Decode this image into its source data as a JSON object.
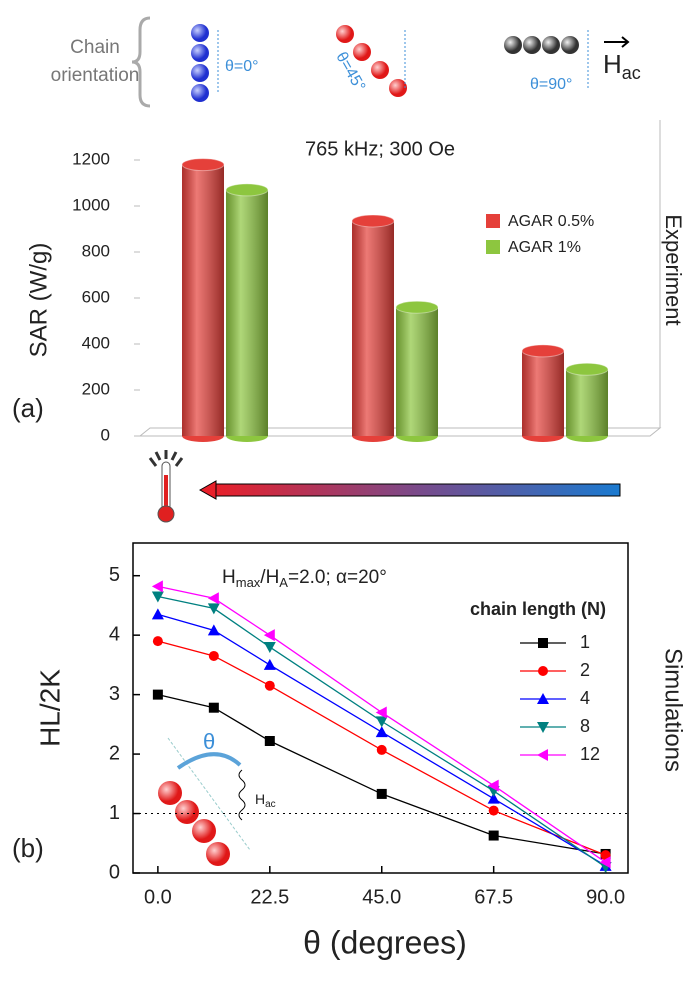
{
  "header": {
    "chain_label": [
      "Chain",
      "orientation"
    ],
    "angles": [
      "θ=0°",
      "θ=45°",
      "θ=90°"
    ],
    "field": [
      "H",
      "ac"
    ]
  },
  "chart_data": [
    {
      "type": "bar",
      "panel": "(a)",
      "annotation": "765 kHz; 300 Oe",
      "ylabel": "SAR (W/g)",
      "side_label": "Experiment",
      "categories": [
        null,
        null,
        null
      ],
      "series": [
        {
          "name": "AGAR 0.5%",
          "color": "#e5403a",
          "values": [
            1180,
            935,
            370
          ]
        },
        {
          "name": "AGAR 1%",
          "color": "#8dc63f",
          "values": [
            1070,
            560,
            290
          ]
        }
      ],
      "ylim": [
        0,
        1300
      ],
      "yticks": [
        0,
        200,
        400,
        600,
        800,
        1000,
        1200
      ]
    },
    {
      "type": "line",
      "panel": "(b)",
      "annotation": [
        "H",
        "max",
        "/H",
        "A",
        "=2.0; α=20°"
      ],
      "xlabel": "θ (degrees)",
      "ylabel": "HL/2K",
      "side_label": "Simulations",
      "legend_title": "chain length (N)",
      "x": [
        0,
        11.25,
        22.5,
        45,
        67.5,
        90
      ],
      "series": [
        {
          "name": "1",
          "color": "#000000",
          "marker": "square",
          "values": [
            3.0,
            2.78,
            2.22,
            1.33,
            0.63,
            0.32
          ]
        },
        {
          "name": "2",
          "color": "#ff0000",
          "marker": "circle",
          "values": [
            3.9,
            3.65,
            3.15,
            2.07,
            1.05,
            0.3
          ]
        },
        {
          "name": "4",
          "color": "#0000ff",
          "marker": "triangle-up",
          "values": [
            4.35,
            4.08,
            3.5,
            2.37,
            1.25,
            0.12
          ]
        },
        {
          "name": "8",
          "color": "#008080",
          "marker": "triangle-down",
          "values": [
            4.65,
            4.45,
            3.8,
            2.55,
            1.38,
            0.1
          ]
        },
        {
          "name": "12",
          "color": "#ff00ff",
          "marker": "triangle-left",
          "values": [
            4.82,
            4.62,
            4.0,
            2.7,
            1.47,
            0.18
          ]
        }
      ],
      "xlim": [
        -5,
        94.5
      ],
      "ylim": [
        0,
        5.55
      ],
      "xticks": [
        {
          "value": 0,
          "label": "0.0"
        },
        22.5,
        {
          "value": 45,
          "label": "45.0"
        },
        67.5,
        {
          "value": 90,
          "label": "90.0"
        }
      ],
      "yticks": [
        0,
        1,
        2,
        3,
        4,
        5
      ],
      "reference_line": 1,
      "inset": [
        "θ",
        "H",
        "ac"
      ]
    }
  ]
}
